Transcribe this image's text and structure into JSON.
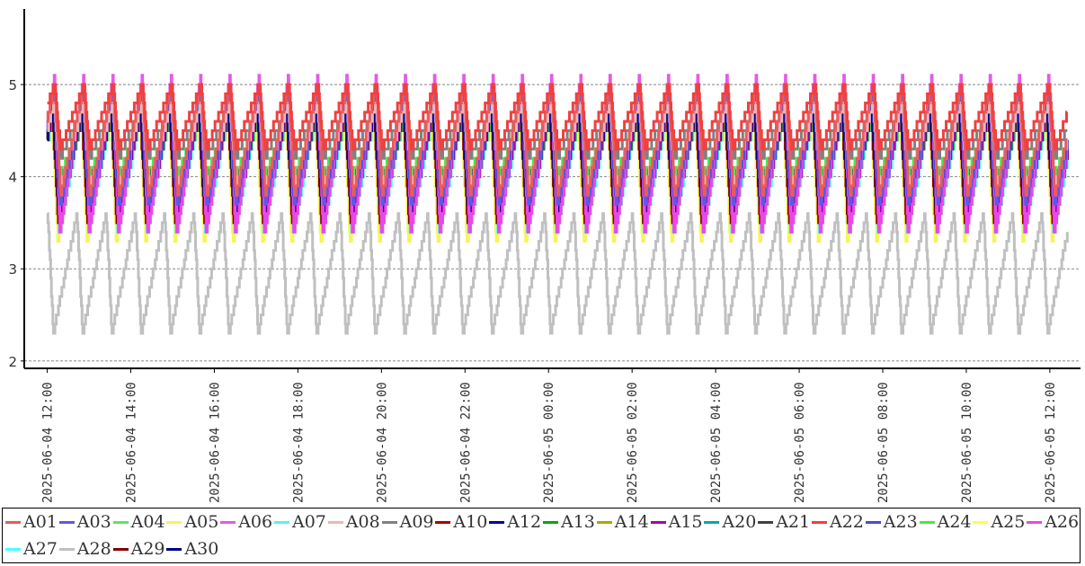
{
  "chart_data": {
    "type": "line",
    "title": "",
    "xlabel": "",
    "ylabel": "",
    "ylim": [
      1.92,
      5.82
    ],
    "yticks": [
      "2",
      "3",
      "4",
      "5"
    ],
    "grid": "horizontal dashed",
    "x_start": "2025-06-04 11:27",
    "x_end": "2025-06-05 12:35",
    "data_start": "2025-06-04 12:00",
    "data_end": "2025-06-05 12:25",
    "xticks": [
      "2025-06-04 12:00",
      "2025-06-04 14:00",
      "2025-06-04 16:00",
      "2025-06-04 18:00",
      "2025-06-04 20:00",
      "2025-06-04 22:00",
      "2025-06-05 00:00",
      "2025-06-05 02:00",
      "2025-06-05 04:00",
      "2025-06-05 06:00",
      "2025-06-05 08:00",
      "2025-06-05 10:00",
      "2025-06-05 12:00"
    ],
    "period_minutes": 42,
    "step": 0.1,
    "legend_placement": "bottom",
    "series": [
      {
        "name": "A28",
        "color": "#c0c0c0",
        "min": 2.3,
        "max": 3.6,
        "phase": 10
      },
      {
        "name": "A09",
        "color": "#808080",
        "min": 4.2,
        "max": 4.8,
        "phase": 0
      },
      {
        "name": "A21",
        "color": "#404040",
        "min": 3.9,
        "max": 4.7,
        "phase": 2
      },
      {
        "name": "A05",
        "color": "#f5f55a",
        "min": 3.3,
        "max": 4.7,
        "phase": 4
      },
      {
        "name": "A25",
        "color": "#ffff48",
        "min": 3.4,
        "max": 4.7,
        "phase": 3
      },
      {
        "name": "A07",
        "color": "#5af0f0",
        "min": 3.4,
        "max": 4.8,
        "phase": 1
      },
      {
        "name": "A27",
        "color": "#48ffff",
        "min": 3.4,
        "max": 4.7,
        "phase": 2
      },
      {
        "name": "A20",
        "color": "#00aaaa",
        "min": 3.6,
        "max": 4.7,
        "phase": 1
      },
      {
        "name": "A13",
        "color": "#00aa00",
        "min": 3.8,
        "max": 4.6,
        "phase": 2
      },
      {
        "name": "A14",
        "color": "#aaaa00",
        "min": 3.8,
        "max": 4.6,
        "phase": 3
      },
      {
        "name": "A04",
        "color": "#5ee65e",
        "min": 3.9,
        "max": 4.6,
        "phase": 1
      },
      {
        "name": "A24",
        "color": "#48e848",
        "min": 4.0,
        "max": 4.6,
        "phase": 2
      },
      {
        "name": "A10",
        "color": "#aa0000",
        "min": 3.5,
        "max": 4.8,
        "phase": 2
      },
      {
        "name": "A29",
        "color": "#800000",
        "min": 3.5,
        "max": 4.7,
        "phase": 3
      },
      {
        "name": "A12",
        "color": "#0000aa",
        "min": 3.6,
        "max": 4.8,
        "phase": 1
      },
      {
        "name": "A30",
        "color": "#000080",
        "min": 3.6,
        "max": 4.7,
        "phase": 2
      },
      {
        "name": "A15",
        "color": "#aa00aa",
        "min": 3.5,
        "max": 4.9,
        "phase": 0
      },
      {
        "name": "A06",
        "color": "#e65ae6",
        "min": 3.4,
        "max": 5.1,
        "phase": 0
      },
      {
        "name": "A26",
        "color": "#e848e8",
        "min": 3.4,
        "max": 5.0,
        "phase": 1
      },
      {
        "name": "A03",
        "color": "#5a5ae6",
        "min": 3.7,
        "max": 4.9,
        "phase": 0
      },
      {
        "name": "A23",
        "color": "#4848e8",
        "min": 3.8,
        "max": 4.8,
        "phase": 1
      },
      {
        "name": "A08",
        "color": "#f0b4b4",
        "min": 3.9,
        "max": 4.8,
        "phase": 0
      },
      {
        "name": "A01",
        "color": "#e85c5c",
        "min": 3.8,
        "max": 5.0,
        "phase": 0
      },
      {
        "name": "A22",
        "color": "#f04040",
        "min": 4.3,
        "max": 5.0,
        "phase": 0
      }
    ]
  },
  "legend": [
    {
      "name": "A01",
      "color": "#e85c5c"
    },
    {
      "name": "A03",
      "color": "#5a5ae6"
    },
    {
      "name": "A04",
      "color": "#5ee65e"
    },
    {
      "name": "A05",
      "color": "#f5f55a"
    },
    {
      "name": "A06",
      "color": "#e65ae6"
    },
    {
      "name": "A07",
      "color": "#5af0f0"
    },
    {
      "name": "A08",
      "color": "#f0b4b4"
    },
    {
      "name": "A09",
      "color": "#808080"
    },
    {
      "name": "A10",
      "color": "#aa0000"
    },
    {
      "name": "A12",
      "color": "#0000aa"
    },
    {
      "name": "A13",
      "color": "#00aa00"
    },
    {
      "name": "A14",
      "color": "#aaaa00"
    },
    {
      "name": "A15",
      "color": "#aa00aa"
    },
    {
      "name": "A20",
      "color": "#00aaaa"
    },
    {
      "name": "A21",
      "color": "#404040"
    },
    {
      "name": "A22",
      "color": "#f04040"
    },
    {
      "name": "A23",
      "color": "#4848e8"
    },
    {
      "name": "A24",
      "color": "#48e848"
    },
    {
      "name": "A25",
      "color": "#ffff48"
    },
    {
      "name": "A26",
      "color": "#e848e8"
    },
    {
      "name": "A27",
      "color": "#48ffff"
    },
    {
      "name": "A28",
      "color": "#c0c0c0"
    },
    {
      "name": "A29",
      "color": "#800000"
    },
    {
      "name": "A30",
      "color": "#000080"
    }
  ]
}
